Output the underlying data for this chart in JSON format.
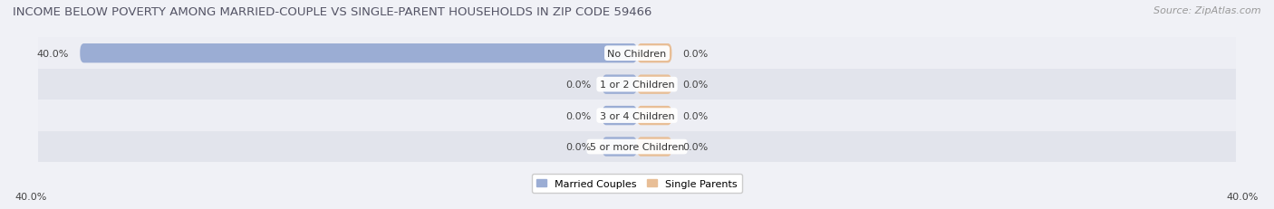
{
  "title": "INCOME BELOW POVERTY AMONG MARRIED-COUPLE VS SINGLE-PARENT HOUSEHOLDS IN ZIP CODE 59466",
  "source": "Source: ZipAtlas.com",
  "categories": [
    "No Children",
    "1 or 2 Children",
    "3 or 4 Children",
    "5 or more Children"
  ],
  "married_values": [
    40.0,
    0.0,
    0.0,
    0.0
  ],
  "single_values": [
    0.0,
    0.0,
    0.0,
    0.0
  ],
  "married_color": "#9badd4",
  "single_color": "#e8be96",
  "row_bg_light": "#edeef4",
  "row_bg_dark": "#e2e4ec",
  "fig_bg": "#f0f1f6",
  "title_color": "#555566",
  "source_color": "#999999",
  "label_color": "#444444",
  "title_fontsize": 9.5,
  "source_fontsize": 8,
  "label_fontsize": 8,
  "category_fontsize": 8,
  "axis_max": 40.0,
  "min_bar_stub": 2.5,
  "legend_label_married": "Married Couples",
  "legend_label_single": "Single Parents",
  "bottom_axis_left": "40.0%",
  "bottom_axis_right": "40.0%"
}
